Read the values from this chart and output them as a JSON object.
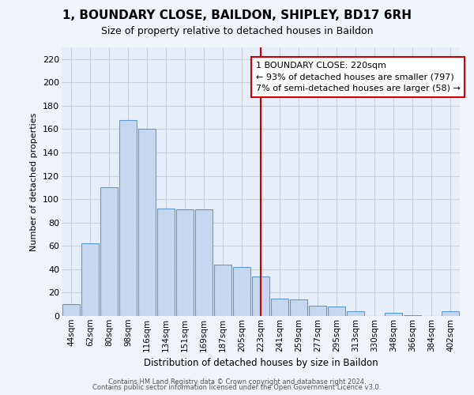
{
  "title": "1, BOUNDARY CLOSE, BAILDON, SHIPLEY, BD17 6RH",
  "subtitle": "Size of property relative to detached houses in Baildon",
  "xlabel": "Distribution of detached houses by size in Baildon",
  "ylabel": "Number of detached properties",
  "footer_lines": [
    "Contains HM Land Registry data © Crown copyright and database right 2024.",
    "Contains public sector information licensed under the Open Government Licence v3.0."
  ],
  "bar_labels": [
    "44sqm",
    "62sqm",
    "80sqm",
    "98sqm",
    "116sqm",
    "134sqm",
    "151sqm",
    "169sqm",
    "187sqm",
    "205sqm",
    "223sqm",
    "241sqm",
    "259sqm",
    "277sqm",
    "295sqm",
    "313sqm",
    "330sqm",
    "348sqm",
    "366sqm",
    "384sqm",
    "402sqm"
  ],
  "bar_values": [
    10,
    62,
    110,
    168,
    160,
    92,
    91,
    91,
    44,
    42,
    34,
    15,
    14,
    9,
    8,
    4,
    0,
    3,
    1,
    0,
    4
  ],
  "bar_color": "#c5d8ef",
  "bar_edge_color": "#5b9bd5",
  "vline_x_index": 10,
  "vline_color": "#cc0000",
  "annotation_text_line1": "1 BOUNDARY CLOSE: 220sqm",
  "annotation_text_line2": "← 93% of detached houses are smaller (797)",
  "annotation_text_line3": "7% of semi-detached houses are larger (58) →",
  "ylim": [
    0,
    230
  ],
  "yticks": [
    0,
    20,
    40,
    60,
    80,
    100,
    120,
    140,
    160,
    180,
    200,
    220
  ],
  "bg_color": "#f0f4fb",
  "plot_bg_color": "#e8eef8",
  "grid_color": "#c8d0dc",
  "title_fontsize": 11,
  "subtitle_fontsize": 9
}
